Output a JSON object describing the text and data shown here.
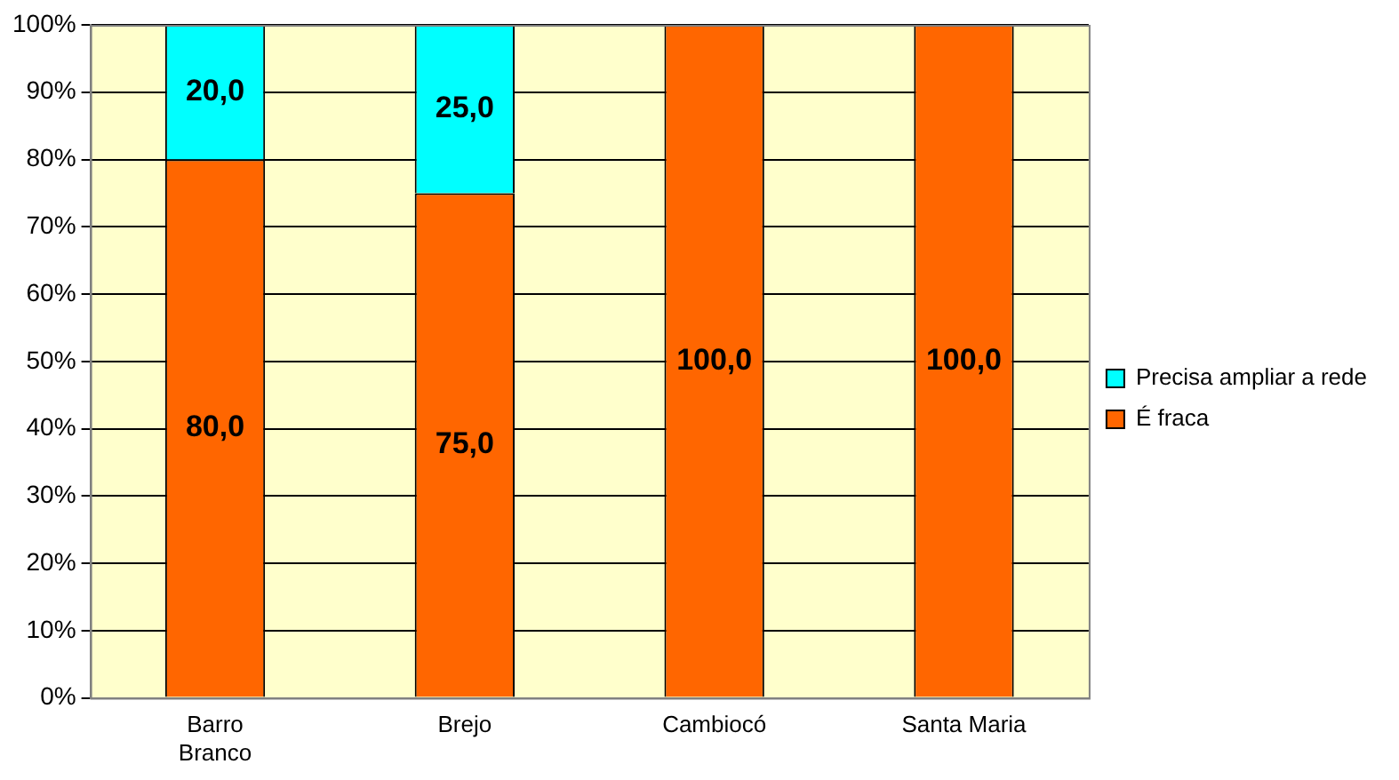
{
  "chart_data": {
    "type": "bar",
    "stacked": true,
    "categories": [
      "Barro Branco",
      "Brejo",
      "Cambiocó",
      "Santa Maria"
    ],
    "series": [
      {
        "name": "É fraca",
        "color": "#ff6600",
        "values": [
          80,
          75,
          100,
          100
        ],
        "value_labels": [
          "80,0",
          "75,0",
          "100,0",
          "100,0"
        ]
      },
      {
        "name": "Precisa ampliar a rede",
        "color": "#00ffff",
        "values": [
          20,
          25,
          null,
          null
        ],
        "value_labels": [
          "20,0",
          "25,0",
          null,
          null
        ]
      }
    ],
    "ylim": [
      0,
      100
    ],
    "yticks": [
      {
        "value": 0,
        "label": "0%"
      },
      {
        "value": 10,
        "label": "10%"
      },
      {
        "value": 20,
        "label": "20%"
      },
      {
        "value": 30,
        "label": "30%"
      },
      {
        "value": 40,
        "label": "40%"
      },
      {
        "value": 50,
        "label": "50%"
      },
      {
        "value": 60,
        "label": "60%"
      },
      {
        "value": 70,
        "label": "70%"
      },
      {
        "value": 80,
        "label": "80%"
      },
      {
        "value": 90,
        "label": "90%"
      },
      {
        "value": 100,
        "label": "100%"
      }
    ],
    "grid": "y",
    "legend": "right"
  }
}
